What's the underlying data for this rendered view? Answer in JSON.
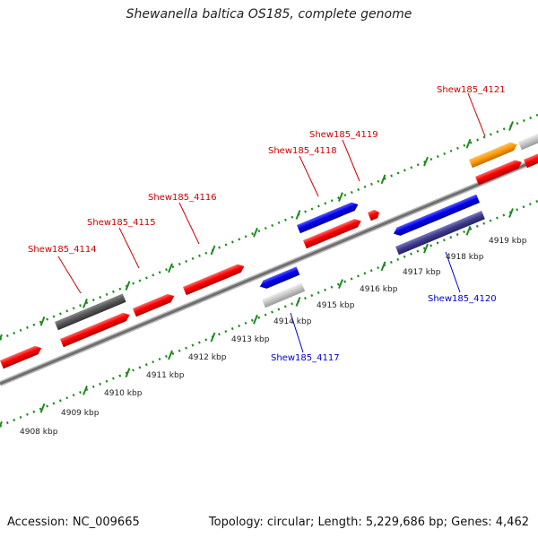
{
  "title": "Shewanella baltica OS185, complete genome",
  "footer": {
    "accession": "Accession: NC_009665",
    "summary": "Topology: circular; Length: 5,229,686 bp; Genes: 4,462"
  },
  "colors": {
    "forward_gene": "#ff0000",
    "reverse_gene": "#0000ee",
    "pseudo_dark": "#555555",
    "pseudo_light": "#bdbdbd",
    "orange_gene": "#ff9900",
    "purple_gene": "#3c3a8a",
    "tick_green": "#1f8a1f",
    "label_red": "#cc0000",
    "label_blue": "#0000cc",
    "backbone": "#777777"
  },
  "tick_labels": [
    "4908 kbp",
    "4909 kbp",
    "4910 kbp",
    "4911 kbp",
    "4912 kbp",
    "4913 kbp",
    "4914 kbp",
    "4915 kbp",
    "4916 kbp",
    "4917 kbp",
    "4918 kbp",
    "4919 kbp"
  ],
  "gene_labels": {
    "g4114": "Shew185_4114",
    "g4115": "Shew185_4115",
    "g4116": "Shew185_4116",
    "g4117": "Shew185_4117",
    "g4118": "Shew185_4118",
    "g4119": "Shew185_4119",
    "g4120": "Shew185_4120",
    "g4121": "Shew185_4121"
  }
}
